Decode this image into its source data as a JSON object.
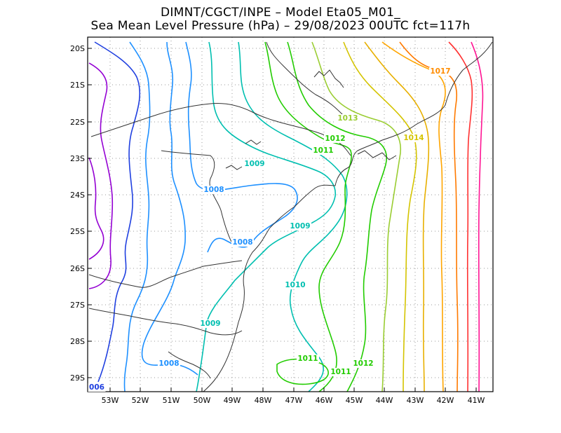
{
  "header": {
    "line1": "DIMNT/CGCT/INPE –  Model Eta05_M01_",
    "line2": "Sea Mean Level Pressure (hPa) – 29/08/2023 00UTC fct=117h"
  },
  "map": {
    "lat_labels": [
      "20S",
      "21S",
      "22S",
      "23S",
      "24S",
      "25S",
      "26S",
      "27S",
      "28S",
      "29S"
    ],
    "lon_labels": [
      "53W",
      "52W",
      "51W",
      "50W",
      "49W",
      "48W",
      "47W",
      "46W",
      "45W",
      "44W",
      "43W",
      "42W",
      "41W"
    ],
    "contour_labels": [
      {
        "text": "1017",
        "color": "#ff8c00"
      },
      {
        "text": "1013",
        "color": "#9acd32"
      },
      {
        "text": "1014",
        "color": "#d4c400"
      },
      {
        "text": "1012",
        "color": "#22cc00"
      },
      {
        "text": "1011",
        "color": "#22cc00"
      },
      {
        "text": "1009",
        "color": "#00bfb0"
      },
      {
        "text": "1008",
        "color": "#1e90ff"
      },
      {
        "text": "1009",
        "color": "#00bfb0"
      },
      {
        "text": "1008",
        "color": "#1e90ff"
      },
      {
        "text": "1010",
        "color": "#00bfb0"
      },
      {
        "text": "1009",
        "color": "#00bfb0"
      },
      {
        "text": "1011",
        "color": "#22cc00"
      },
      {
        "text": "1012",
        "color": "#22cc00"
      },
      {
        "text": "1011",
        "color": "#22cc00"
      },
      {
        "text": "1008",
        "color": "#1e90ff"
      },
      {
        "text": "006",
        "color": "#2040e0"
      }
    ]
  }
}
